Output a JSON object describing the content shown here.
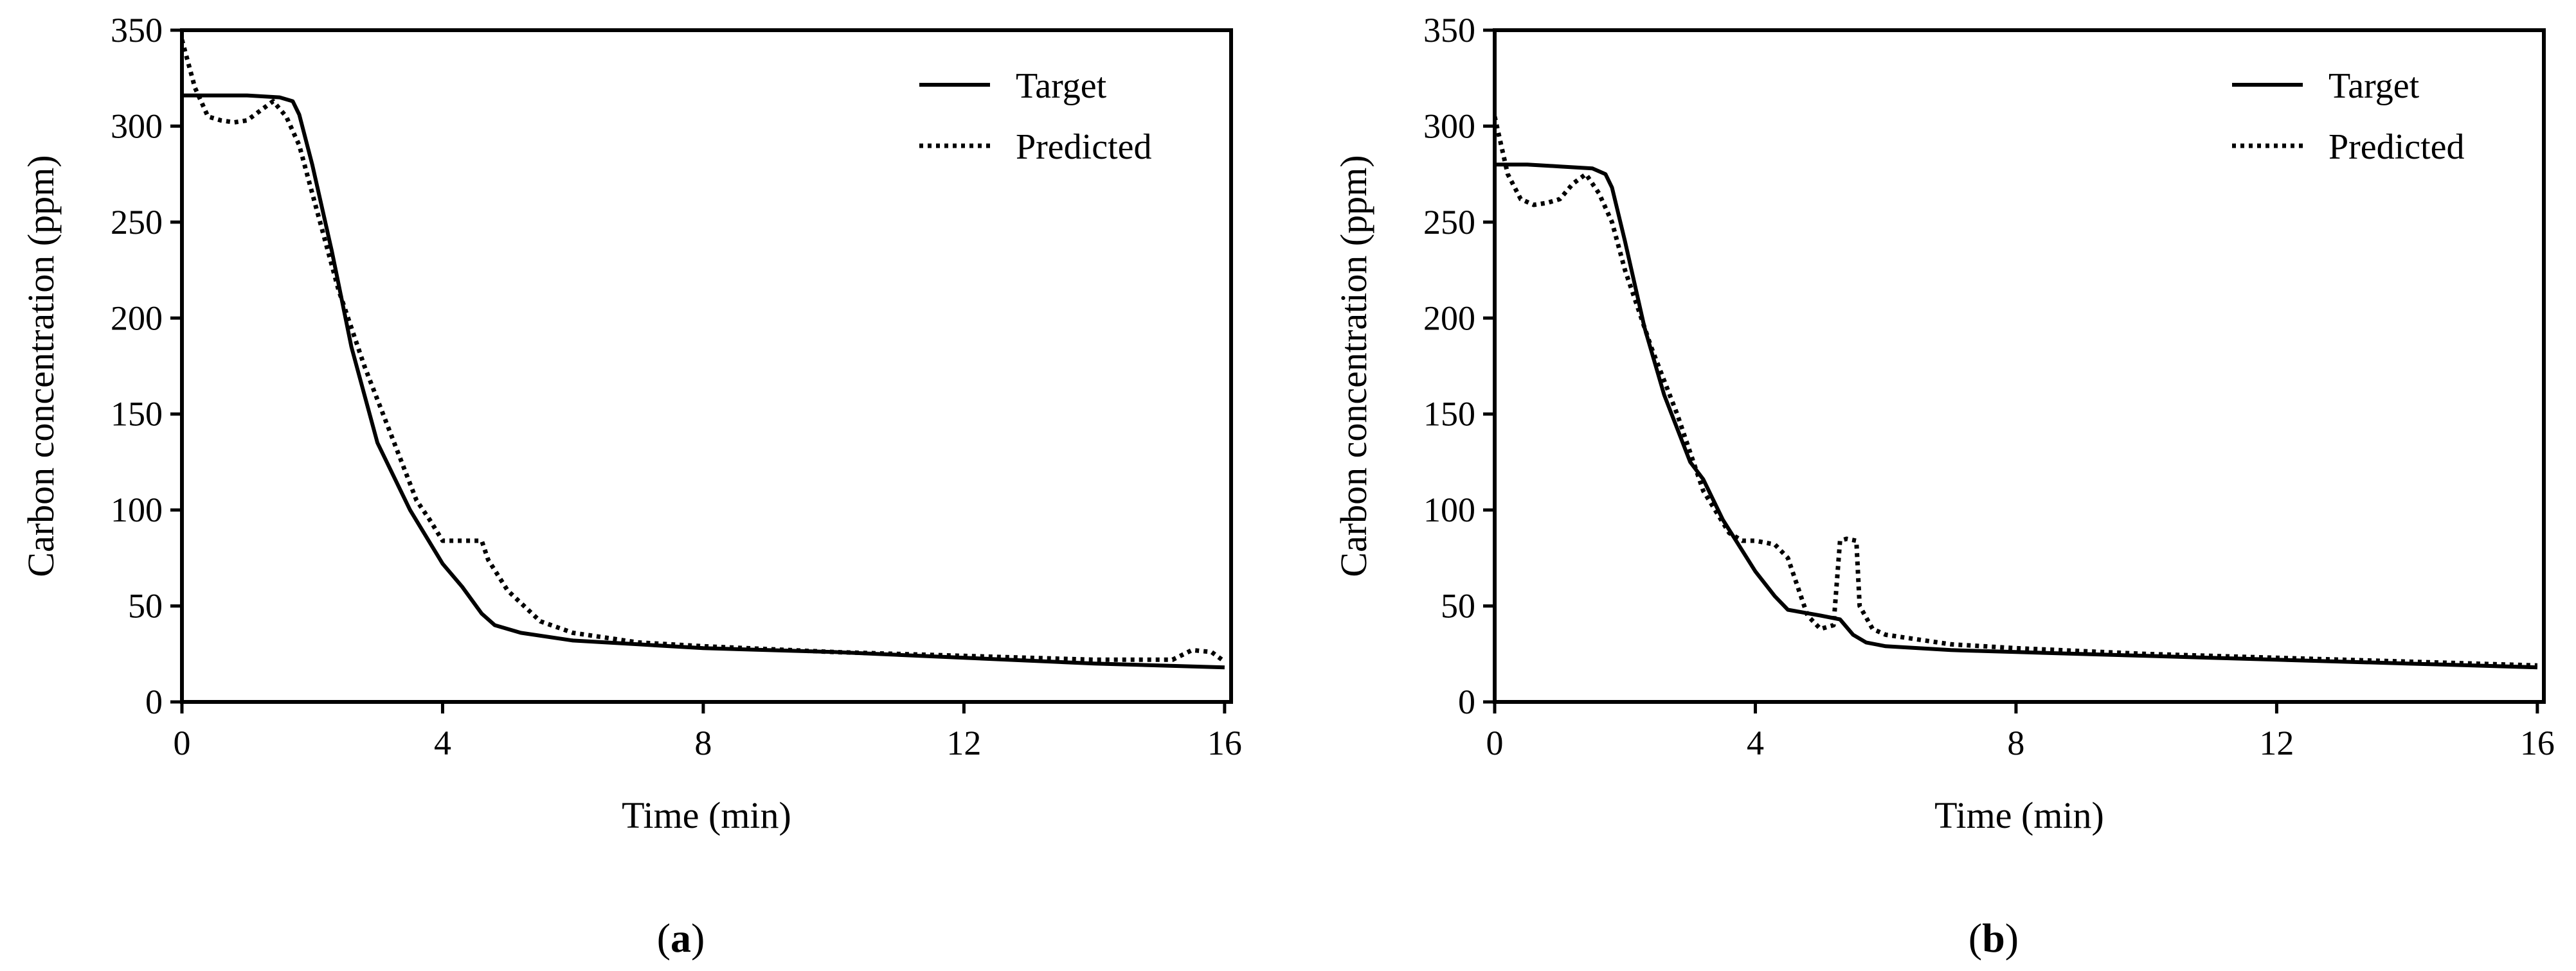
{
  "chart_data": [
    {
      "type": "line",
      "caption_letter": "a",
      "xlabel": "Time (min)",
      "ylabel": "Carbon concentration (ppm)",
      "xlim": [
        0,
        16.1
      ],
      "ylim": [
        0,
        350
      ],
      "xticks": [
        0,
        4,
        8,
        12,
        16
      ],
      "yticks": [
        0,
        50,
        100,
        150,
        200,
        250,
        300,
        350
      ],
      "legend_position": "top-right",
      "series": [
        {
          "name": "Target",
          "style": "solid",
          "x": [
            0,
            0.5,
            1.0,
            1.5,
            1.7,
            1.8,
            2.0,
            2.3,
            2.6,
            3.0,
            3.5,
            4.0,
            4.3,
            4.6,
            4.8,
            5.2,
            6.0,
            7.0,
            8.0,
            10.0,
            12.0,
            14.0,
            16.0
          ],
          "y": [
            316,
            316,
            316,
            315,
            313,
            306,
            280,
            235,
            185,
            135,
            100,
            72,
            60,
            46,
            40,
            36,
            32,
            30,
            28,
            26,
            23,
            20,
            18
          ]
        },
        {
          "name": "Predicted",
          "style": "dotted",
          "x": [
            0,
            0.2,
            0.4,
            0.6,
            0.8,
            1.0,
            1.2,
            1.4,
            1.6,
            1.8,
            2.0,
            2.4,
            2.8,
            3.2,
            3.6,
            3.8,
            4.0,
            4.6,
            4.7,
            5.0,
            5.5,
            6.0,
            7.0,
            8.0,
            10.0,
            12.0,
            14.0,
            15.2,
            15.5,
            15.8,
            16.0
          ],
          "y": [
            345,
            320,
            305,
            303,
            302,
            303,
            308,
            313,
            305,
            290,
            265,
            215,
            175,
            140,
            105,
            95,
            84,
            84,
            74,
            58,
            42,
            36,
            31,
            29,
            26,
            24,
            22,
            22,
            27,
            26,
            21
          ]
        }
      ]
    },
    {
      "type": "line",
      "caption_letter": "b",
      "xlabel": "Time (min)",
      "ylabel": "Carbon concentration (ppm)",
      "xlim": [
        0,
        16.1
      ],
      "ylim": [
        0,
        350
      ],
      "xticks": [
        0,
        4,
        8,
        12,
        16
      ],
      "yticks": [
        0,
        50,
        100,
        150,
        200,
        250,
        300,
        350
      ],
      "legend_position": "top-right",
      "series": [
        {
          "name": "Target",
          "style": "solid",
          "x": [
            0,
            0.5,
            1.0,
            1.5,
            1.7,
            1.8,
            2.0,
            2.3,
            2.6,
            3.0,
            3.2,
            3.5,
            4.0,
            4.3,
            4.5,
            5.0,
            5.3,
            5.5,
            5.7,
            6.0,
            7.0,
            8.0,
            10.0,
            12.0,
            14.0,
            16.0
          ],
          "y": [
            280,
            280,
            279,
            278,
            275,
            268,
            240,
            195,
            160,
            125,
            116,
            95,
            68,
            55,
            48,
            45,
            43,
            35,
            31,
            29,
            27,
            26,
            24,
            22,
            20,
            18
          ]
        },
        {
          "name": "Predicted",
          "style": "dotted",
          "x": [
            0,
            0.2,
            0.4,
            0.6,
            0.8,
            1.0,
            1.2,
            1.4,
            1.6,
            1.8,
            2.0,
            2.4,
            2.8,
            3.2,
            3.6,
            3.8,
            4.0,
            4.3,
            4.5,
            4.8,
            5.0,
            5.2,
            5.3,
            5.4,
            5.55,
            5.6,
            5.8,
            6.0,
            7.0,
            8.0,
            10.0,
            12.0,
            14.0,
            16.0
          ],
          "y": [
            305,
            275,
            262,
            259,
            260,
            262,
            270,
            275,
            265,
            250,
            225,
            185,
            150,
            110,
            88,
            84,
            84,
            82,
            75,
            45,
            38,
            40,
            84,
            85,
            84,
            50,
            38,
            35,
            30,
            28,
            25,
            23,
            21,
            19
          ]
        }
      ]
    }
  ]
}
